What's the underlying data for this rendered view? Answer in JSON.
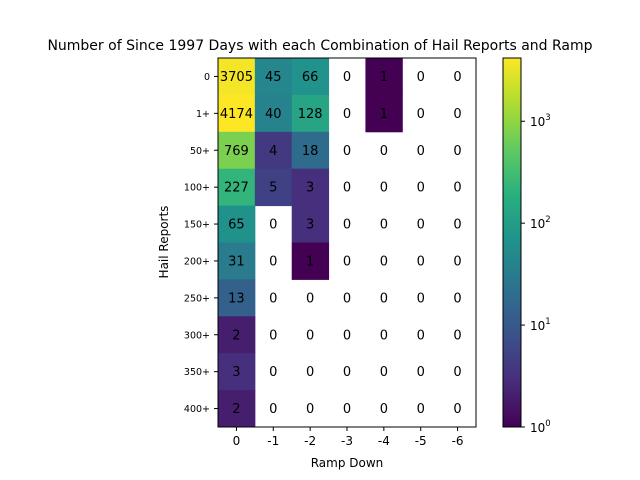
{
  "chart_data": {
    "type": "heatmap",
    "title": "Number of Since 1997 Days with each Combination of Hail Reports and Ramp",
    "xlabel": "Ramp Down",
    "ylabel": "Hail Reports",
    "x_categories": [
      "0",
      "-1",
      "-2",
      "-3",
      "-4",
      "-5",
      "-6"
    ],
    "y_categories": [
      "0",
      "1+",
      "50+",
      "100+",
      "150+",
      "200+",
      "250+",
      "300+",
      "350+",
      "400+"
    ],
    "values": [
      [
        3705,
        45,
        66,
        0,
        1,
        0,
        0
      ],
      [
        4174,
        40,
        128,
        0,
        1,
        0,
        0
      ],
      [
        769,
        4,
        18,
        0,
        0,
        0,
        0
      ],
      [
        227,
        5,
        3,
        0,
        0,
        0,
        0
      ],
      [
        65,
        0,
        3,
        0,
        0,
        0,
        0
      ],
      [
        31,
        0,
        1,
        0,
        0,
        0,
        0
      ],
      [
        13,
        0,
        0,
        0,
        0,
        0,
        0
      ],
      [
        2,
        0,
        0,
        0,
        0,
        0,
        0
      ],
      [
        3,
        0,
        0,
        0,
        0,
        0,
        0
      ],
      [
        2,
        0,
        0,
        0,
        0,
        0,
        0
      ]
    ],
    "color_scale": "log",
    "colormap": "viridis",
    "zero_cells": "blank",
    "colorbar": {
      "range": [
        1,
        4174
      ],
      "ticks": [
        {
          "value": 1,
          "label": "10^0"
        },
        {
          "value": 10,
          "label": "10^1"
        },
        {
          "value": 100,
          "label": "10^2"
        },
        {
          "value": 1000,
          "label": "10^3"
        }
      ]
    },
    "grid": false
  }
}
